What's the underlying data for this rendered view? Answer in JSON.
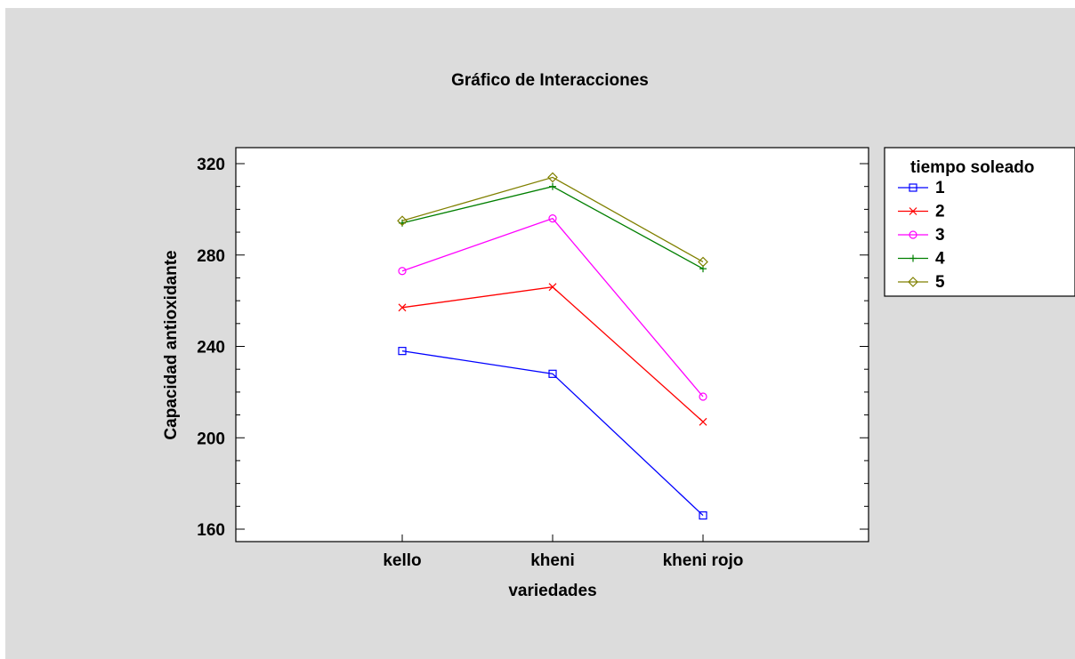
{
  "chart_data": {
    "type": "line",
    "title": "Gráfico de Interacciones",
    "xlabel": "variedades",
    "ylabel": "Capacidad antioxidante",
    "categories": [
      "kello",
      "kheni",
      "kheni rojo"
    ],
    "ylim": [
      155,
      325
    ],
    "yticks": [
      160,
      200,
      240,
      280,
      320
    ],
    "legend_title": "tiempo soleado",
    "legend_position": "right",
    "grid": false,
    "series": [
      {
        "name": "1",
        "values": [
          238,
          228,
          166
        ],
        "color": "#0000ff",
        "marker": "square"
      },
      {
        "name": "2",
        "values": [
          257,
          266,
          207
        ],
        "color": "#ff0000",
        "marker": "x"
      },
      {
        "name": "3",
        "values": [
          273,
          296,
          218
        ],
        "color": "#ff00ff",
        "marker": "circle"
      },
      {
        "name": "4",
        "values": [
          294,
          310,
          274
        ],
        "color": "#007f00",
        "marker": "plus"
      },
      {
        "name": "5",
        "values": [
          295,
          314,
          277
        ],
        "color": "#808000",
        "marker": "diamond"
      }
    ]
  }
}
